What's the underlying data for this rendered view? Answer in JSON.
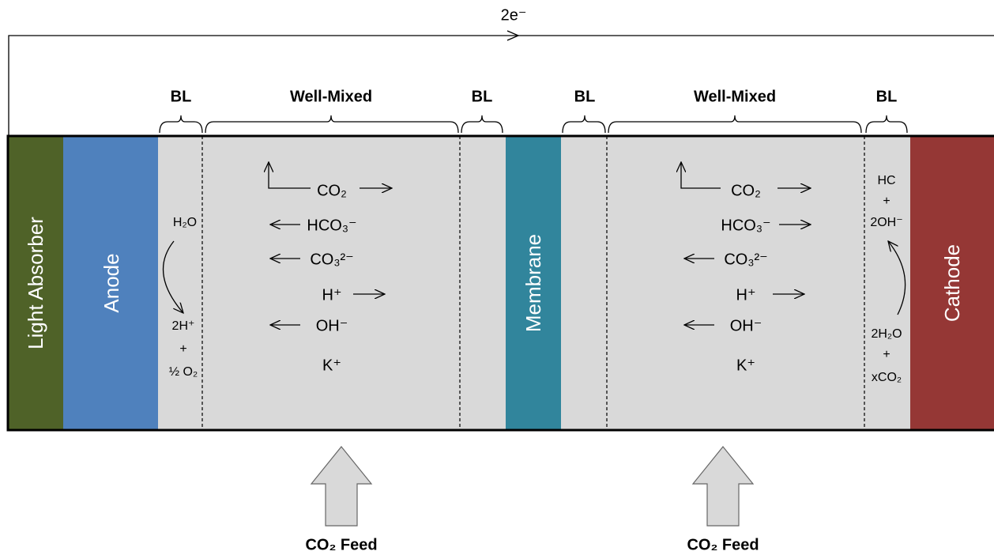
{
  "wire_label": "2e⁻",
  "layers": [
    "Light Absorber",
    "Anode",
    "Membrane",
    "Cathode"
  ],
  "zones": [
    "BL",
    "Well-Mixed",
    "BL",
    "BL",
    "Well-Mixed",
    "BL"
  ],
  "anode_reaction": {
    "reactant": "H₂O",
    "products": [
      "2H⁺",
      "+",
      "½ O₂"
    ]
  },
  "cathode_reaction": {
    "products": [
      "HC",
      "+",
      "2OH⁻"
    ],
    "reactants": [
      "2H₂O",
      "+",
      "xCO₂"
    ]
  },
  "anolyte_species": [
    "CO₂",
    "HCO₃⁻",
    "CO₃²⁻",
    "H⁺",
    "OH⁻",
    "K⁺"
  ],
  "catholyte_species": [
    "CO₂",
    "HCO₃⁻",
    "CO₃²⁻",
    "H⁺",
    "OH⁻",
    "K⁺"
  ],
  "feeds": [
    "CO₂ Feed",
    "CO₂ Feed"
  ]
}
